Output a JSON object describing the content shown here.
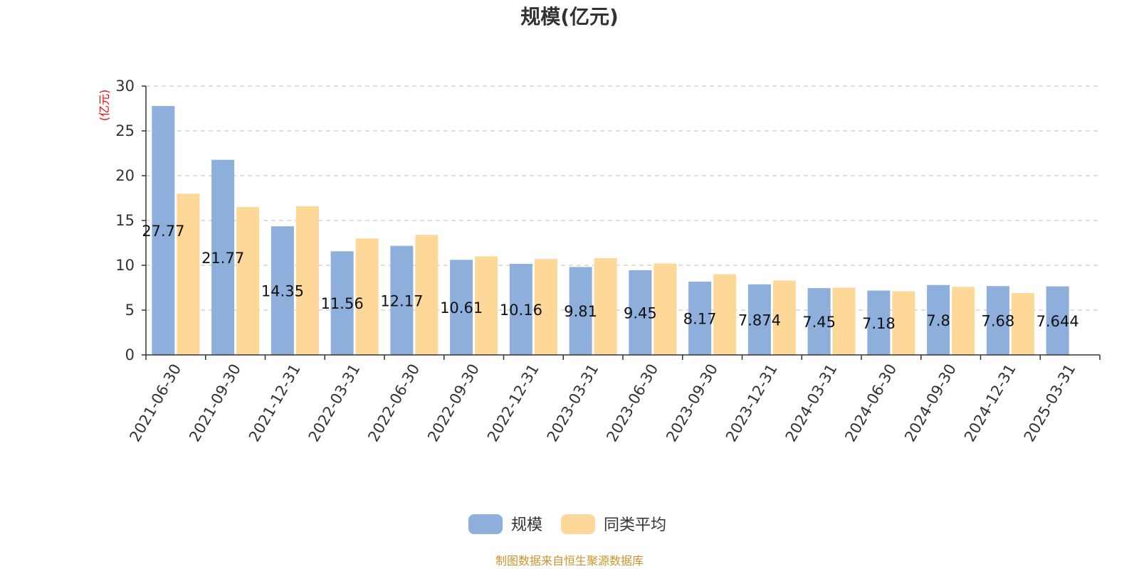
{
  "chart_data": {
    "type": "bar",
    "title": "规模(亿元)",
    "ylabel": "(亿元)",
    "ylim": [
      0,
      30
    ],
    "yticks": [
      0,
      5,
      10,
      15,
      20,
      25,
      30
    ],
    "categories": [
      "2021-06-30",
      "2021-09-30",
      "2021-12-31",
      "2022-03-31",
      "2022-06-30",
      "2022-09-30",
      "2022-12-31",
      "2023-03-31",
      "2023-06-30",
      "2023-09-30",
      "2023-12-31",
      "2024-03-31",
      "2024-06-30",
      "2024-09-30",
      "2024-12-31",
      "2025-03-31"
    ],
    "series": [
      {
        "name": "规模",
        "color": "#8eaedb",
        "values": [
          27.77,
          21.77,
          14.35,
          11.56,
          12.17,
          10.61,
          10.16,
          9.81,
          9.45,
          8.17,
          7.874,
          7.45,
          7.18,
          7.8,
          7.68,
          7.644
        ],
        "labels": [
          "27.77",
          "21.77",
          "14.35",
          "11.56",
          "12.17",
          "10.61",
          "10.16",
          "9.81",
          "9.45",
          "8.17",
          "7.874",
          "7.45",
          "7.18",
          "7.8",
          "7.68",
          "7.644"
        ]
      },
      {
        "name": "同类平均",
        "color": "#fed899",
        "values": [
          18.0,
          16.5,
          16.6,
          13.0,
          13.4,
          11.0,
          10.7,
          10.8,
          10.2,
          9.0,
          8.3,
          7.5,
          7.1,
          7.6,
          6.9,
          null
        ]
      }
    ],
    "legend": "bottom-center",
    "grid": true,
    "source": "制图数据来自恒生聚源数据库"
  }
}
